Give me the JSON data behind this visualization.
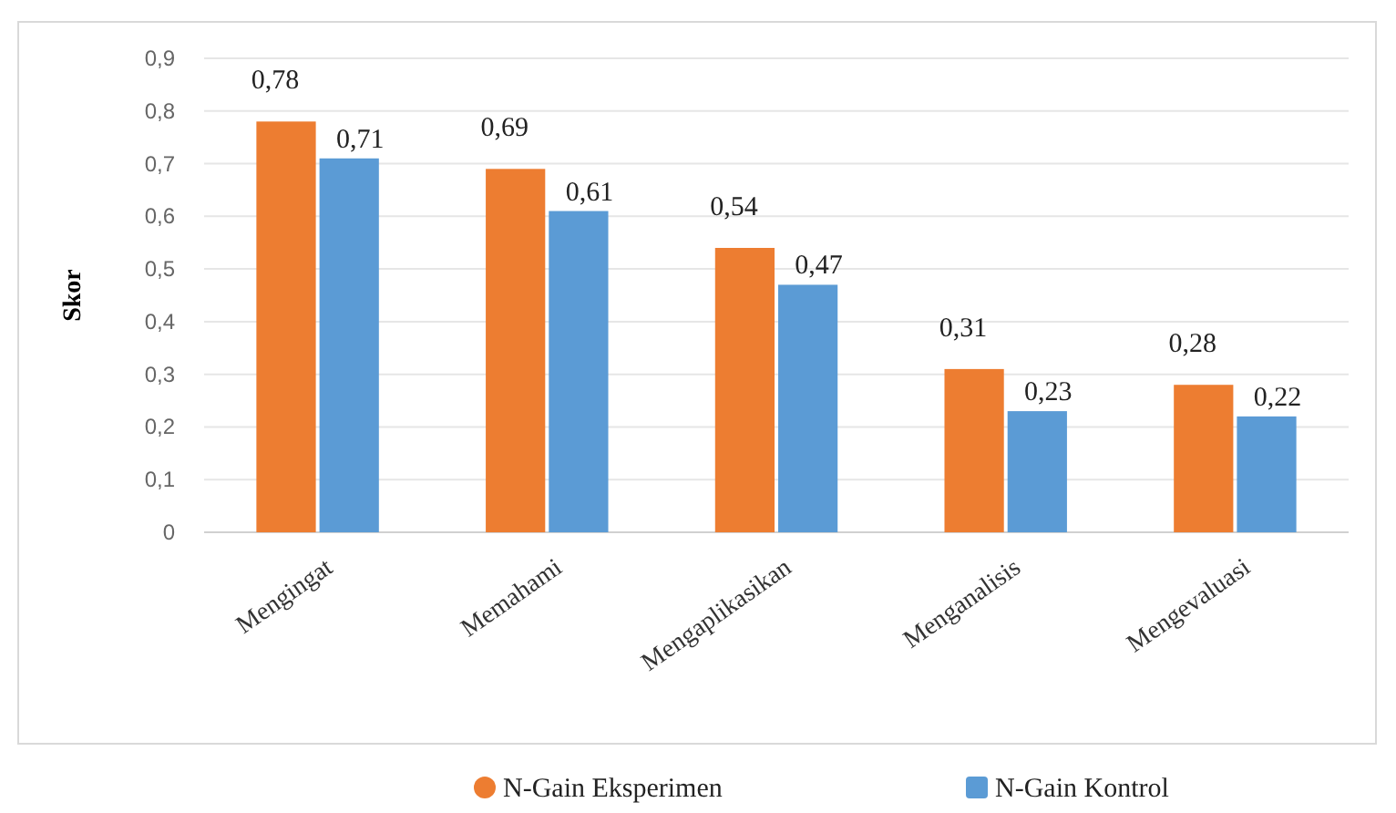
{
  "chart_data": {
    "type": "bar",
    "ylabel": "Skor",
    "categories": [
      "Mengingat",
      "Memahami",
      "Mengaplikasikan",
      "Menganalisis",
      "Mengevaluasi"
    ],
    "series": [
      {
        "name": "N-Gain Eksperimen",
        "color": "#ed7d31",
        "values": [
          0.78,
          0.69,
          0.54,
          0.31,
          0.28
        ],
        "value_labels": [
          "0,78",
          "0,69",
          "0,54",
          "0,31",
          "0,28"
        ]
      },
      {
        "name": "N-Gain Kontrol",
        "color": "#5b9bd5",
        "values": [
          0.71,
          0.61,
          0.47,
          0.23,
          0.22
        ],
        "value_labels": [
          "0,71",
          "0,61",
          "0,47",
          "0,23",
          "0,22"
        ]
      }
    ],
    "ylim": [
      0,
      0.9
    ],
    "yticks": [
      {
        "value": 0,
        "label": "0"
      },
      {
        "value": 0.1,
        "label": "0,1"
      },
      {
        "value": 0.2,
        "label": "0,2"
      },
      {
        "value": 0.3,
        "label": "0,3"
      },
      {
        "value": 0.4,
        "label": "0,4"
      },
      {
        "value": 0.5,
        "label": "0,5"
      },
      {
        "value": 0.6,
        "label": "0,6"
      },
      {
        "value": 0.7,
        "label": "0,7"
      },
      {
        "value": 0.8,
        "label": "0,8"
      },
      {
        "value": 0.9,
        "label": "0,9"
      }
    ],
    "grid": "y",
    "legend": "bottom"
  }
}
